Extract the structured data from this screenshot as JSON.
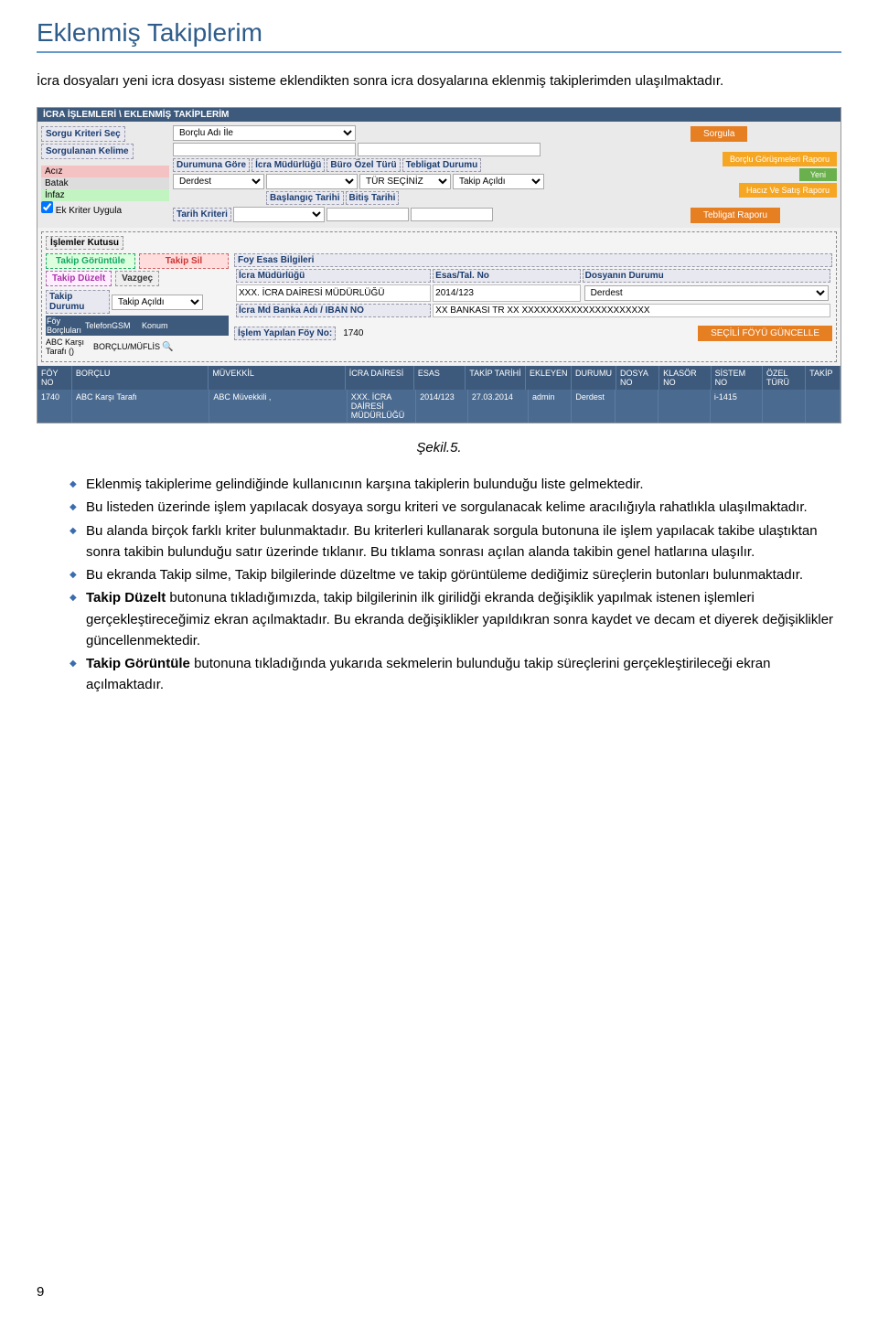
{
  "heading": "Eklenmiş Takiplerim",
  "intro": "İcra dosyaları yeni icra dosyası sisteme eklendikten sonra icra dosyalarına eklenmiş takiplerimden ulaşılmaktadır.",
  "breadcrumb": "İCRA İŞLEMLERİ \\ EKLENMİŞ TAKİPLERİM",
  "sorgu_kriteri_lbl": "Sorgu Kriteri Seç",
  "sorgu_kriteri_val": "Borçlu Adı İle",
  "sorgulanan_kelime_lbl": "Sorgulanan Kelime",
  "sorgula_btn": "Sorgula",
  "status": {
    "aciz": "Acız",
    "batak": "Batak",
    "infaz": "İnfaz"
  },
  "ek_kriter_lbl": "Ek Kriter Uygula",
  "durumuna_gore_lbl": "Durumuna Göre",
  "durumuna_gore_val": "Derdest",
  "icra_mud_lbl": "İcra Müdürlüğü",
  "buro_ozel_lbl": "Büro Özel Türü",
  "buro_ozel_val": "TÜR SEÇİNİZ",
  "tebligat_lbl": "Tebligat Durumu",
  "tebligat_val": "Takip Açıldı",
  "baslangic_lbl": "Başlangıç Tarihi",
  "bitis_lbl": "Bitiş Tarihi",
  "tarih_kriteri_lbl": "Tarih Kriteri",
  "rapor_borclu": "Borçlu Görüşmeleri Raporu",
  "rapor_yeni": "Yeni",
  "rapor_haciz": "Hacız Ve Satış Raporu",
  "rapor_tebligat": "Tebligat Raporu",
  "islemler_kutusu": "İşlemler Kutusu",
  "takip_goruntule": "Takip Görüntüle",
  "takip_sil": "Takip Sil",
  "takip_duzelt": "Takip Düzelt",
  "vazgec": "Vazgeç",
  "takip_durumu_lbl": "Takip Durumu",
  "takip_durumu_val": "Takip Açıldı",
  "foy_borclulari_lbl": "Föy Borçluları",
  "telefon_gsm_lbl": "TelefonGSM",
  "konum_lbl": "Konum",
  "abc_karsi_lbl": "ABC Karşı Tarafı ()",
  "borclu_muflis_lbl": "BORÇLU/MÜFLİS",
  "foy_esas_lbl": "Foy Esas Bilgileri",
  "icra_mudurlugu2_lbl": "İcra Müdürlüğü",
  "icra_mudurlugu2_val": "XXX. İCRA DAİRESİ MÜDÜRLÜĞÜ",
  "esas_tal_lbl": "Esas/Tal. No",
  "esas_tal_val": "2014/123",
  "dosya_durumu_lbl": "Dosyanın Durumu",
  "dosya_durumu_val": "Derdest",
  "iban_lbl": "İcra Md Banka Adı / IBAN NO",
  "iban_val": "XX BANKASI TR XX XXXXXXXXXXXXXXXXXXXXX",
  "islem_foy_lbl": "İşlem Yapılan Föy No:",
  "islem_foy_val": "1740",
  "secili_foy_btn": "SEÇİLİ FÖYÜ GÜNCELLE",
  "columns": [
    "FÖY NO",
    "BORÇLU",
    "MÜVEKKİL",
    "İCRA DAİRESİ",
    "ESAS",
    "TAKİP TARİHİ",
    "EKLEYEN",
    "DURUMU",
    "DOSYA NO",
    "KLASÖR NO",
    "SİSTEM NO",
    "ÖZEL TÜRÜ",
    "TAKİP"
  ],
  "row": [
    "1740",
    "ABC Karşı Tarafı",
    "ABC Müvekkili ,",
    "XXX. İCRA DAİRESİ MÜDÜRLÜĞÜ",
    "2014/123",
    "27.03.2014",
    "admin",
    "Derdest",
    "",
    "",
    "i-1415",
    "",
    ""
  ],
  "caption": "Şekil.5.",
  "bullets": [
    "Eklenmiş takiplerime gelindiğinde kullanıcının karşına takiplerin bulunduğu liste gelmektedir.",
    "Bu listeden üzerinde işlem yapılacak dosyaya sorgu kriteri ve sorgulanacak kelime aracılığıyla rahatlıkla ulaşılmaktadır.",
    "Bu alanda birçok farklı kriter bulunmaktadır. Bu kriterleri kullanarak sorgula butonuna ile işlem yapılacak takibe ulaştıktan sonra takibin bulunduğu satır üzerinde tıklanır. Bu tıklama sonrası açılan alanda takibin genel hatlarına ulaşılır.",
    "Bu ekranda Takip silme, Takip bilgilerinde düzeltme ve takip görüntüleme dediğimiz süreçlerin butonları bulunmaktadır.",
    "<b>Takip Düzelt</b> butonuna tıkladığımızda, takip bilgilerinin ilk girilidği ekranda değişiklik yapılmak istenen işlemleri gerçekleştireceğimiz ekran açılmaktadır. Bu ekranda değişiklikler yapıldıkran sonra kaydet ve decam et diyerek değişiklikler güncellenmektedir.",
    "<b>Takip Görüntüle</b> butonuna tıkladığında yukarıda sekmelerin bulunduğu takip süreçlerini gerçekleştirileceği ekran açılmaktadır."
  ],
  "page_num": "9"
}
